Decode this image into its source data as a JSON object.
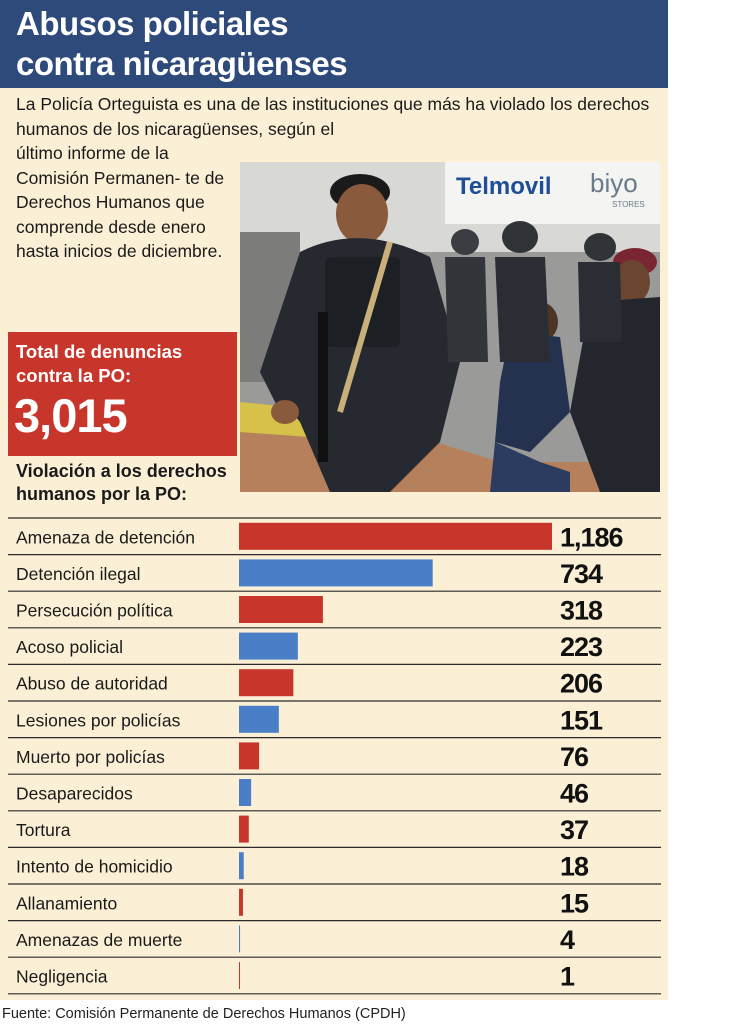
{
  "title_line1": "Abusos policiales",
  "title_line2": "contra nicaragüenses",
  "intro_top": "La Policía Orteguista es una de las instituciones que más ha violado los derechos humanos de los nicaragüenses, según el",
  "intro_side": "último informe de la Comisión Permanen- te de Derechos Humanos que comprende desde enero hasta inicios de diciembre.",
  "photo": {
    "sign_text": "Telmovil",
    "sign_text2": "biyo",
    "sign_sub": "STORES"
  },
  "total": {
    "label": "Total de denuncias contra la PO:",
    "value": "3,015"
  },
  "section_title": "Violación a los derechos humanos por la PO:",
  "source": "Fuente: Comisión Permanente de Derechos Humanos (CPDH)",
  "colors": {
    "red": "#c8352b",
    "blue": "#4a7fc8",
    "header": "#2d4a7a",
    "panel": "#fbf0d6"
  },
  "chart_data": {
    "type": "bar",
    "orientation": "horizontal",
    "title": "Violación a los derechos humanos por la PO:",
    "categories": [
      "Amenaza de detención",
      "Detención ilegal",
      "Persecución política",
      "Acoso policial",
      "Abuso de autoridad",
      "Lesiones por policías",
      "Muerto por policías",
      "Desaparecidos",
      "Tortura",
      "Intento de homicidio",
      "Allanamiento",
      "Amenazas de muerte",
      "Negligencia"
    ],
    "values": [
      1186,
      734,
      318,
      223,
      206,
      151,
      76,
      46,
      37,
      18,
      15,
      4,
      1
    ],
    "value_labels": [
      "1,186",
      "734",
      "318",
      "223",
      "206",
      "151",
      "76",
      "46",
      "37",
      "18",
      "15",
      "4",
      "1"
    ],
    "bar_colors": [
      "red",
      "blue",
      "red",
      "blue",
      "red",
      "blue",
      "red",
      "blue",
      "red",
      "blue",
      "red",
      "blue",
      "red"
    ],
    "xlim": [
      0,
      1186
    ],
    "grid": false,
    "legend": "none"
  }
}
